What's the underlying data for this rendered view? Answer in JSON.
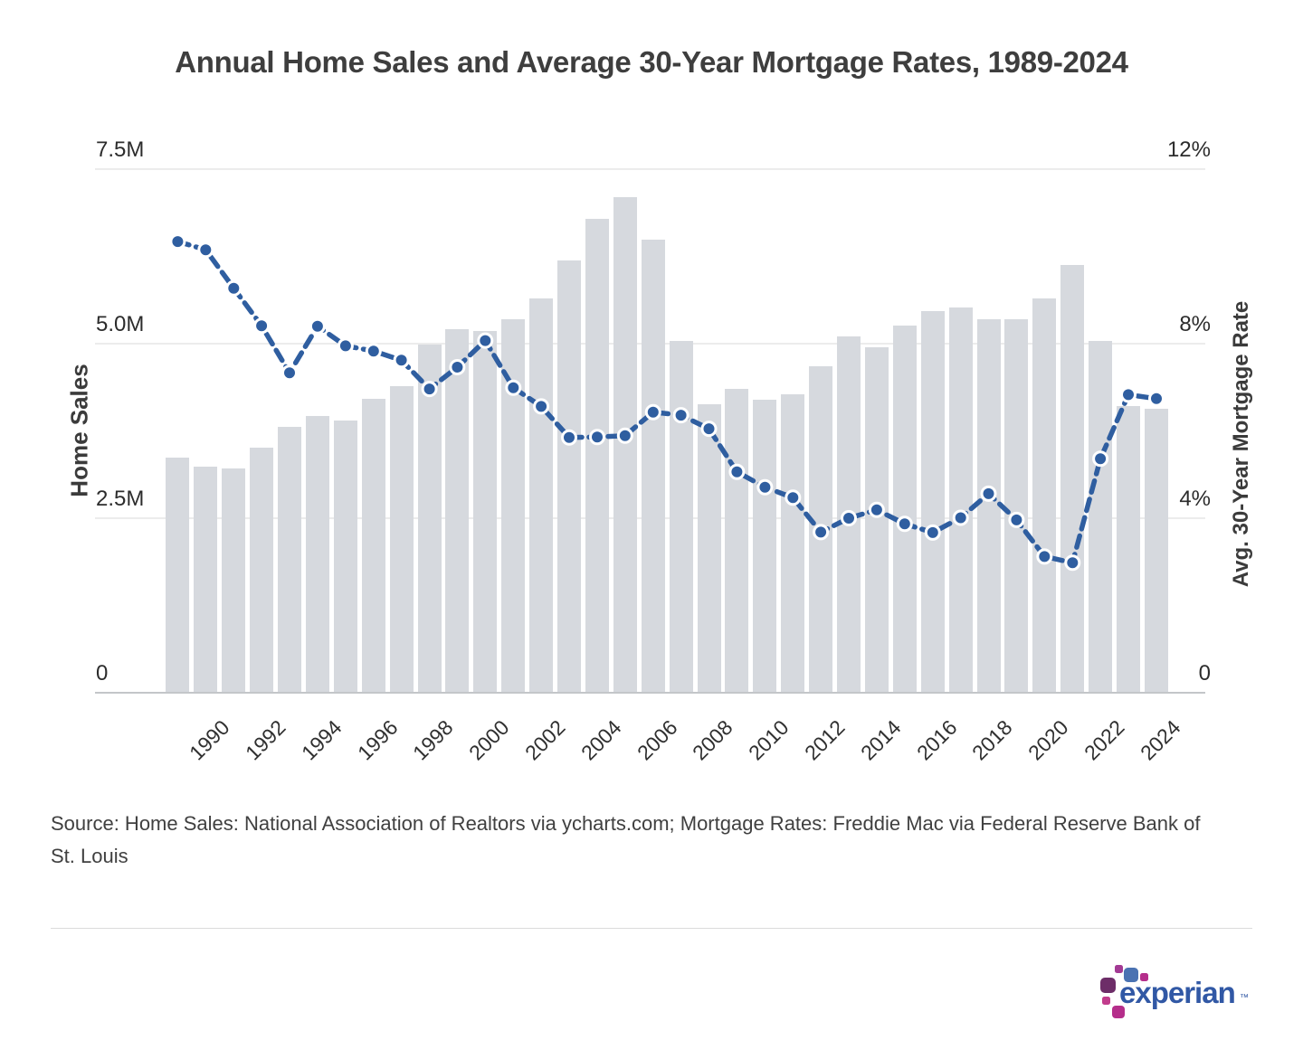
{
  "title": "Annual Home Sales and Average 30-Year Mortgage Rates, 1989-2024",
  "chart_data": {
    "type": "bar+line combo",
    "title": "Annual Home Sales and Average 30-Year Mortgage Rates, 1989-2024",
    "categories": [
      1989,
      1990,
      1991,
      1992,
      1993,
      1994,
      1995,
      1996,
      1997,
      1998,
      1999,
      2000,
      2001,
      2002,
      2003,
      2004,
      2005,
      2006,
      2007,
      2008,
      2009,
      2010,
      2011,
      2012,
      2013,
      2014,
      2015,
      2016,
      2017,
      2018,
      2019,
      2020,
      2021,
      2022,
      2023,
      2024
    ],
    "series": [
      {
        "name": "Home Sales",
        "type": "bar",
        "axis": "left",
        "unit": "millions of homes",
        "values": [
          3.35,
          3.22,
          3.2,
          3.5,
          3.8,
          3.95,
          3.88,
          4.2,
          4.38,
          4.97,
          5.19,
          5.17,
          5.34,
          5.63,
          6.18,
          6.78,
          7.08,
          6.48,
          5.03,
          4.12,
          4.34,
          4.19,
          4.26,
          4.66,
          5.09,
          4.94,
          5.25,
          5.45,
          5.51,
          5.34,
          5.34,
          5.64,
          6.12,
          5.03,
          4.09,
          4.06
        ]
      },
      {
        "name": "Avg. 30-Year Mortgage Rate",
        "type": "line",
        "axis": "right",
        "unit": "percent",
        "values": [
          10.32,
          10.13,
          9.25,
          8.39,
          7.31,
          8.38,
          7.93,
          7.81,
          7.6,
          6.94,
          7.44,
          8.05,
          6.97,
          6.54,
          5.83,
          5.84,
          5.87,
          6.41,
          6.34,
          6.03,
          5.04,
          4.69,
          4.45,
          3.66,
          3.98,
          4.17,
          3.85,
          3.65,
          3.99,
          4.54,
          3.94,
          3.1,
          2.96,
          5.34,
          6.81,
          6.72
        ]
      }
    ],
    "left_axis": {
      "title": "Home Sales",
      "min": 0,
      "max": 7.5,
      "ticks_top_to_bottom": [
        "7.5M",
        "5.0M",
        "2.5M",
        "0"
      ]
    },
    "right_axis": {
      "title": "Avg. 30-Year Mortgage Rate",
      "min": 0,
      "max": 12,
      "ticks_top_to_bottom": [
        "12%",
        "8%",
        "4%",
        "0"
      ]
    },
    "x_axis": {
      "tick_labels": [
        "1990",
        "1992",
        "1994",
        "1996",
        "1998",
        "2000",
        "2002",
        "2004",
        "2006",
        "2008",
        "2010",
        "2012",
        "2014",
        "2016",
        "2018",
        "2020",
        "2022",
        "2024"
      ]
    },
    "grid": "horizontal",
    "legend_position": "none"
  },
  "source_note": "Source: Home Sales: National Association of Realtors via ycharts.com; Mortgage Rates: Freddie Mac via Federal Reserve Bank of St. Louis",
  "footer": {
    "brand_wordmark": "experian",
    "trademark": "™"
  },
  "colors": {
    "bar_fill": "#d6d9de",
    "line": "#2f5ea0",
    "dot_fill": "#2f5ea0",
    "dot_ring": "#ffffff",
    "gridline": "#ececec",
    "axis_baseline": "#c3c6c9",
    "title_text": "#3e3e3e",
    "tick_text": "#2c2c2c",
    "brand_blue": "#3158a5",
    "logo_block_blue": "#4a72b2",
    "logo_block_magenta": "#b52e8b",
    "logo_block_purple": "#6d2d68",
    "logo_block_violet": "#a33a94"
  }
}
